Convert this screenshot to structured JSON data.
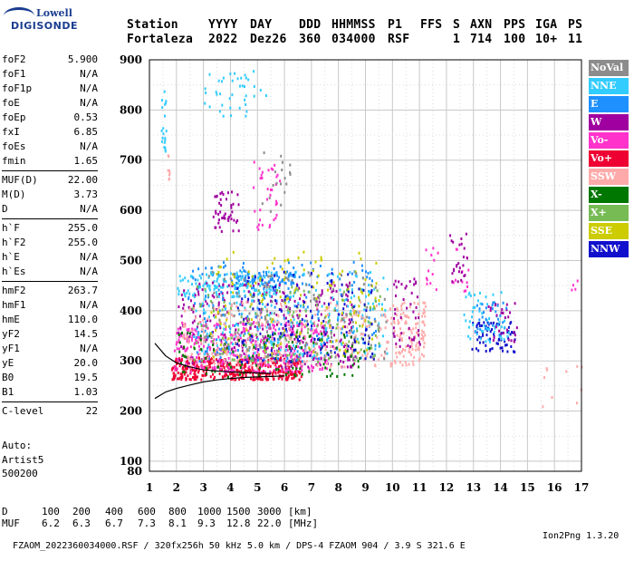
{
  "header": {
    "col_labels": [
      "Station",
      "YYYY",
      "DAY",
      "DDD",
      "HHMMSS",
      "P1",
      "FFS",
      "S",
      "AXN",
      "PPS",
      "IGA",
      "PS"
    ],
    "values": [
      "Fortaleza",
      "2022",
      "Dez26",
      "360",
      "034000",
      "RSF",
      "",
      "1",
      "714",
      "100",
      "10+",
      "11"
    ]
  },
  "logo": {
    "brand": "Lowell",
    "product": "DIGISONDE"
  },
  "params_groups": [
    [
      [
        "foF2",
        "5.900"
      ],
      [
        "foF1",
        "N/A"
      ],
      [
        "foF1p",
        "N/A"
      ],
      [
        "foE",
        "N/A"
      ],
      [
        "foEp",
        "0.53"
      ],
      [
        "fxI",
        "6.85"
      ],
      [
        "foEs",
        "N/A"
      ],
      [
        "fmin",
        "1.65"
      ]
    ],
    [
      [
        "MUF(D)",
        "22.00"
      ],
      [
        "M(D)",
        "3.73"
      ],
      [
        "D",
        "N/A"
      ]
    ],
    [
      [
        "h`F",
        "255.0"
      ],
      [
        "h`F2",
        "255.0"
      ],
      [
        "h`E",
        "N/A"
      ],
      [
        "h`Es",
        "N/A"
      ]
    ],
    [
      [
        "hmF2",
        "263.7"
      ],
      [
        "hmF1",
        "N/A"
      ],
      [
        "hmE",
        "110.0"
      ],
      [
        "yF2",
        "14.5"
      ],
      [
        "yF1",
        "N/A"
      ],
      [
        "yE",
        "20.0"
      ],
      [
        "B0",
        "19.5"
      ],
      [
        "B1",
        "1.03"
      ]
    ],
    [
      [
        "C-level",
        "22"
      ]
    ]
  ],
  "autoscale": {
    "line1": "Auto:",
    "line2": "Artist5",
    "line3": "500200"
  },
  "legend": [
    {
      "label": "NoVal",
      "color": "#8c8c8c"
    },
    {
      "label": "NNE",
      "color": "#33ccff"
    },
    {
      "label": "E",
      "color": "#1e90ff"
    },
    {
      "label": "W",
      "color": "#a000a0"
    },
    {
      "label": "Vo-",
      "color": "#ff33cc"
    },
    {
      "label": "Vo+",
      "color": "#ee0033"
    },
    {
      "label": "SSW",
      "color": "#ffaaaa"
    },
    {
      "label": "X-",
      "color": "#007700"
    },
    {
      "label": "X+",
      "color": "#77bb55"
    },
    {
      "label": "SSE",
      "color": "#cccc00"
    },
    {
      "label": "NNW",
      "color": "#1010cc"
    }
  ],
  "bottom": {
    "d_label": "D",
    "d_values": [
      "100",
      "200",
      "400",
      "600",
      "800",
      "1000",
      "1500",
      "3000"
    ],
    "d_unit": "[km]",
    "muf_label": "MUF",
    "muf_values": [
      "6.2",
      "6.3",
      "6.7",
      "7.3",
      "8.1",
      "9.3",
      "12.8",
      "22.0"
    ],
    "muf_unit": "[MHz]"
  },
  "footer": {
    "text": "FZAOM_2022360034000.RSF / 320fx256h 50 kHz 5.0 km / DPS-4 FZAOM 904 / 3.9 S 321.6 E",
    "version": "Ion2Png 1.3.20"
  },
  "chart_data": {
    "type": "scatter",
    "xlabel": "",
    "ylabel": "",
    "xlim": [
      1,
      17
    ],
    "ylim": [
      80,
      900
    ],
    "x_ticks": [
      1,
      2,
      3,
      4,
      5,
      6,
      7,
      8,
      9,
      10,
      11,
      12,
      13,
      14,
      15,
      16,
      17
    ],
    "y_ticks": [
      100,
      200,
      300,
      400,
      500,
      600,
      700,
      800,
      900
    ],
    "y_tick_labels": [
      "100",
      "200",
      "300",
      "400",
      "500",
      "600",
      "700",
      "800",
      "900"
    ],
    "y_bottom_label": "80",
    "grid": true,
    "clusters": [
      {
        "color": "#33ccff",
        "xr": [
          1.4,
          1.6
        ],
        "yr": [
          700,
          840
        ],
        "n": 20
      },
      {
        "color": "#ffaaaa",
        "xr": [
          1.6,
          1.75
        ],
        "yr": [
          660,
          720
        ],
        "n": 8
      },
      {
        "color": "#33ccff",
        "xr": [
          3.0,
          5.3
        ],
        "yr": [
          790,
          880
        ],
        "n": 40
      },
      {
        "color": "#a000a0",
        "xr": [
          3.3,
          4.3
        ],
        "yr": [
          560,
          640
        ],
        "n": 45
      },
      {
        "color": "#ff33cc",
        "xr": [
          4.8,
          5.9
        ],
        "yr": [
          560,
          700
        ],
        "n": 35
      },
      {
        "color": "#8c8c8c",
        "xr": [
          5.1,
          6.2
        ],
        "yr": [
          600,
          720
        ],
        "n": 18
      },
      {
        "color": "#33ccff",
        "xr": [
          2.0,
          5.8
        ],
        "yr": [
          430,
          480
        ],
        "n": 120
      },
      {
        "color": "#1e90ff",
        "xr": [
          4.0,
          6.4
        ],
        "yr": [
          455,
          480
        ],
        "n": 60
      },
      {
        "color": "#ee0033",
        "xr": [
          1.8,
          6.6
        ],
        "yr": [
          265,
          310
        ],
        "n": 420
      },
      {
        "color": "#ff33cc",
        "xr": [
          1.9,
          7.6
        ],
        "yr": [
          280,
          380
        ],
        "n": 360
      },
      {
        "color": "#a000a0",
        "xr": [
          2.0,
          8.6
        ],
        "yr": [
          290,
          460
        ],
        "n": 320
      },
      {
        "color": "#1e90ff",
        "xr": [
          2.4,
          9.5
        ],
        "yr": [
          300,
          500
        ],
        "n": 240
      },
      {
        "color": "#33ccff",
        "xr": [
          2.6,
          9.8
        ],
        "yr": [
          310,
          480
        ],
        "n": 220
      },
      {
        "color": "#ffaaaa",
        "xr": [
          2.2,
          11.2
        ],
        "yr": [
          290,
          420
        ],
        "n": 320
      },
      {
        "color": "#cccc00",
        "xr": [
          3.2,
          9.6
        ],
        "yr": [
          310,
          520
        ],
        "n": 150
      },
      {
        "color": "#77bb55",
        "xr": [
          2.5,
          9.6
        ],
        "yr": [
          300,
          450
        ],
        "n": 140
      },
      {
        "color": "#007700",
        "xr": [
          2.0,
          9.2
        ],
        "yr": [
          270,
          360
        ],
        "n": 110
      },
      {
        "color": "#1010cc",
        "xr": [
          4.2,
          9.3
        ],
        "yr": [
          300,
          480
        ],
        "n": 120
      },
      {
        "color": "#8c8c8c",
        "xr": [
          3.0,
          9.8
        ],
        "yr": [
          300,
          480
        ],
        "n": 130
      },
      {
        "color": "#ffaaaa",
        "xr": [
          10.0,
          11.2
        ],
        "yr": [
          310,
          420
        ],
        "n": 70
      },
      {
        "color": "#a000a0",
        "xr": [
          10.0,
          11.0
        ],
        "yr": [
          330,
          470
        ],
        "n": 45
      },
      {
        "color": "#ff33cc",
        "xr": [
          11.2,
          12.8
        ],
        "yr": [
          440,
          530
        ],
        "n": 25
      },
      {
        "color": "#a000a0",
        "xr": [
          12.1,
          12.8
        ],
        "yr": [
          460,
          560
        ],
        "n": 25
      },
      {
        "color": "#1010cc",
        "xr": [
          12.9,
          14.6
        ],
        "yr": [
          320,
          380
        ],
        "n": 70
      },
      {
        "color": "#33ccff",
        "xr": [
          12.6,
          14.3
        ],
        "yr": [
          340,
          440
        ],
        "n": 55
      },
      {
        "color": "#a000a0",
        "xr": [
          13.5,
          14.6
        ],
        "yr": [
          340,
          420
        ],
        "n": 30
      },
      {
        "color": "#1e90ff",
        "xr": [
          13.0,
          14.2
        ],
        "yr": [
          350,
          430
        ],
        "n": 25
      },
      {
        "color": "#ffaaaa",
        "xr": [
          15.5,
          17.0
        ],
        "yr": [
          200,
          330
        ],
        "n": 10
      },
      {
        "color": "#ff33cc",
        "xr": [
          16.6,
          17.0
        ],
        "yr": [
          420,
          480
        ],
        "n": 4
      }
    ],
    "lines": [
      {
        "name": "trace_upper",
        "color": "#000000",
        "points": [
          [
            1.2,
            335
          ],
          [
            1.6,
            310
          ],
          [
            2.0,
            296
          ],
          [
            2.5,
            288
          ],
          [
            3.0,
            282
          ],
          [
            3.5,
            280
          ],
          [
            4.0,
            278
          ],
          [
            4.5,
            277
          ],
          [
            5.0,
            276
          ],
          [
            5.5,
            275
          ]
        ]
      },
      {
        "name": "trace_lower",
        "color": "#000000",
        "points": [
          [
            1.2,
            225
          ],
          [
            1.6,
            238
          ],
          [
            2.0,
            245
          ],
          [
            2.5,
            252
          ],
          [
            3.0,
            258
          ],
          [
            3.5,
            262
          ],
          [
            4.0,
            265
          ],
          [
            4.5,
            267
          ],
          [
            5.0,
            268
          ],
          [
            5.5,
            269
          ],
          [
            6.0,
            270
          ]
        ]
      }
    ]
  }
}
